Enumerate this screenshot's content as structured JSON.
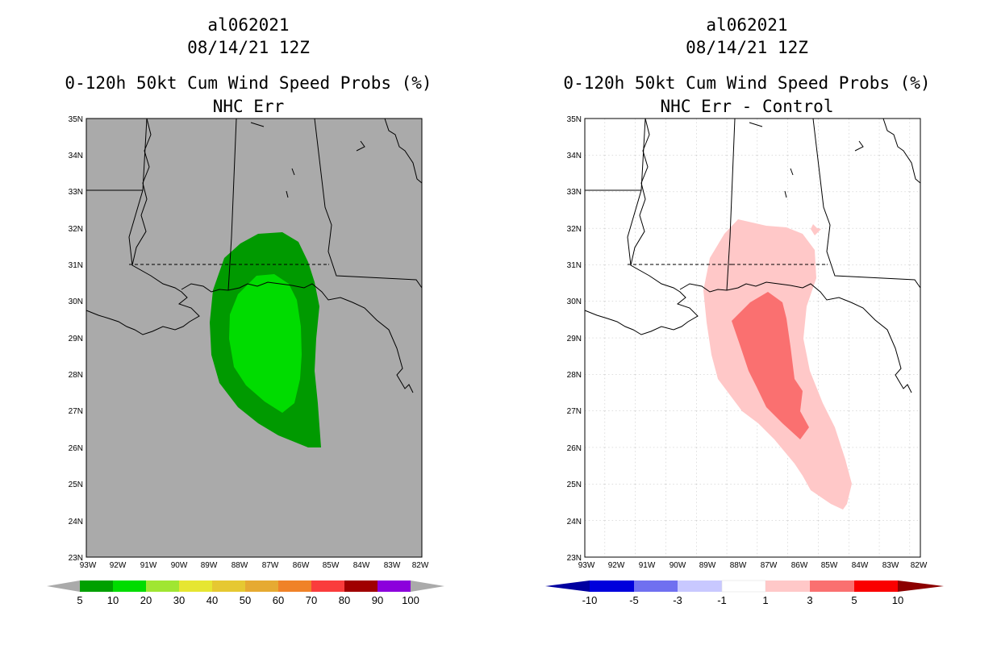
{
  "panels": [
    {
      "storm": "al062021",
      "datetime": "08/14/21 12Z",
      "product": "0-120h 50kt Cum Wind Speed Probs (%)",
      "subtitle": "NHC Err",
      "background": "#aaaaaa",
      "lat_labels": [
        "35N",
        "34N",
        "33N",
        "32N",
        "31N",
        "30N",
        "29N",
        "28N",
        "27N",
        "26N",
        "25N",
        "24N",
        "23N"
      ],
      "lon_labels": [
        "93W",
        "92W",
        "91W",
        "90W",
        "89W",
        "88W",
        "87W",
        "86W",
        "85W",
        "84W",
        "83W",
        "82W"
      ],
      "colorbar": {
        "colors": [
          "#00a000",
          "#00dc00",
          "#a0e632",
          "#e6e632",
          "#e6c832",
          "#e6aa32",
          "#f08228",
          "#fa3c3c",
          "#a00000",
          "#8c00dc"
        ],
        "labels": [
          "5",
          "10",
          "20",
          "30",
          "40",
          "50",
          "60",
          "70",
          "80",
          "90",
          "100"
        ],
        "end_color": "#aaaaaa"
      }
    },
    {
      "storm": "al062021",
      "datetime": "08/14/21 12Z",
      "product": "0-120h 50kt Cum Wind Speed Probs (%)",
      "subtitle": "NHC Err - Control",
      "background": "#ffffff",
      "lat_labels": [
        "35N",
        "34N",
        "33N",
        "32N",
        "31N",
        "30N",
        "29N",
        "28N",
        "27N",
        "26N",
        "25N",
        "24N",
        "23N"
      ],
      "lon_labels": [
        "93W",
        "92W",
        "91W",
        "90W",
        "89W",
        "88W",
        "87W",
        "86W",
        "85W",
        "84W",
        "83W",
        "82W"
      ],
      "colorbar": {
        "colors": [
          "#0000dc",
          "#7070f0",
          "#c8c8ff",
          "#ffffff",
          "#ffc8c8",
          "#fa7070",
          "#fa0000"
        ],
        "labels": [
          "-10",
          "-5",
          "-3",
          "-1",
          "1",
          "3",
          "5",
          "10"
        ],
        "left_end_color": "#0000a0",
        "right_end_color": "#8c0000"
      }
    }
  ]
}
